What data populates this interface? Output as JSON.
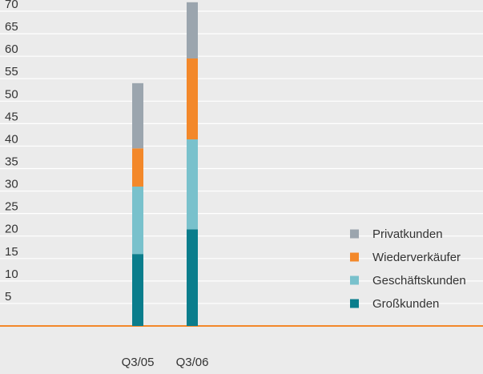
{
  "chart_data": {
    "type": "bar",
    "stacked": true,
    "categories": [
      "Q3/05",
      "Q3/06"
    ],
    "series": [
      {
        "name": "Großkunden",
        "values": [
          16,
          21.5
        ],
        "color": "#0a7d8c"
      },
      {
        "name": "Geschäftskunden",
        "values": [
          15,
          20
        ],
        "color": "#79c1cc"
      },
      {
        "name": "Wiederverkäufer",
        "values": [
          8.5,
          18
        ],
        "color": "#f3882a"
      },
      {
        "name": "Privatkunden",
        "values": [
          14.5,
          12.5
        ],
        "color": "#9ba5ae"
      }
    ],
    "yticks": [
      5,
      10,
      15,
      20,
      25,
      30,
      35,
      40,
      45,
      50,
      55,
      60,
      65,
      70
    ],
    "ylim": [
      0,
      72.5
    ],
    "legend_order": [
      "Privatkunden",
      "Wiederverkäufer",
      "Geschäftskunden",
      "Großkunden"
    ],
    "legend_position": "bottom-right",
    "grid": true,
    "colors": {
      "background": "#ebebeb",
      "gridline": "#ffffff",
      "baseline": "#f3882a",
      "text": "#333333"
    }
  }
}
